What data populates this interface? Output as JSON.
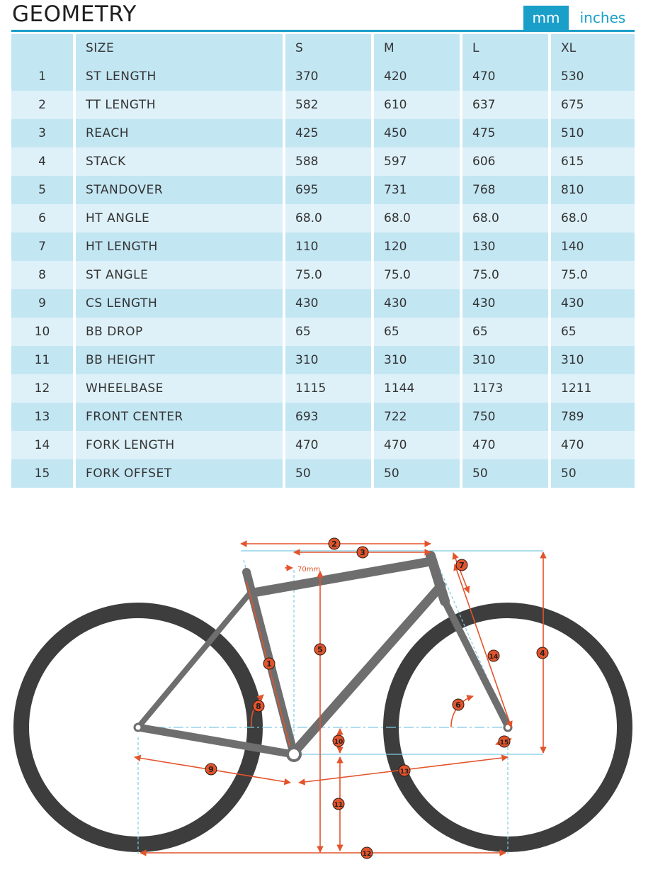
{
  "header": {
    "title": "GEOMETRY",
    "unit_mm": "mm",
    "unit_inches": "inches"
  },
  "table": {
    "columns": [
      "",
      "SIZE",
      "S",
      "M",
      "L",
      "XL"
    ],
    "rows": [
      {
        "num": "1",
        "label": "ST LENGTH",
        "values": [
          "370",
          "420",
          "470",
          "530"
        ]
      },
      {
        "num": "2",
        "label": "TT LENGTH",
        "values": [
          "582",
          "610",
          "637",
          "675"
        ]
      },
      {
        "num": "3",
        "label": "REACH",
        "values": [
          "425",
          "450",
          "475",
          "510"
        ]
      },
      {
        "num": "4",
        "label": "STACK",
        "values": [
          "588",
          "597",
          "606",
          "615"
        ]
      },
      {
        "num": "5",
        "label": "STANDOVER",
        "values": [
          "695",
          "731",
          "768",
          "810"
        ]
      },
      {
        "num": "6",
        "label": "HT ANGLE",
        "values": [
          "68.0",
          "68.0",
          "68.0",
          "68.0"
        ]
      },
      {
        "num": "7",
        "label": "HT LENGTH",
        "values": [
          "110",
          "120",
          "130",
          "140"
        ]
      },
      {
        "num": "8",
        "label": "ST ANGLE",
        "values": [
          "75.0",
          "75.0",
          "75.0",
          "75.0"
        ]
      },
      {
        "num": "9",
        "label": "CS LENGTH",
        "values": [
          "430",
          "430",
          "430",
          "430"
        ]
      },
      {
        "num": "10",
        "label": "BB DROP",
        "values": [
          "65",
          "65",
          "65",
          "65"
        ]
      },
      {
        "num": "11",
        "label": "BB HEIGHT",
        "values": [
          "310",
          "310",
          "310",
          "310"
        ]
      },
      {
        "num": "12",
        "label": "WHEELBASE",
        "values": [
          "1115",
          "1144",
          "1173",
          "1211"
        ]
      },
      {
        "num": "13",
        "label": "FRONT CENTER",
        "values": [
          "693",
          "722",
          "750",
          "789"
        ]
      },
      {
        "num": "14",
        "label": "FORK LENGTH",
        "values": [
          "470",
          "470",
          "470",
          "470"
        ]
      },
      {
        "num": "15",
        "label": "FORK OFFSET",
        "values": [
          "50",
          "50",
          "50",
          "50"
        ]
      }
    ]
  },
  "diagram": {
    "offset_label": "70mm",
    "markers": [
      "1",
      "2",
      "3",
      "4",
      "5",
      "6",
      "7",
      "8",
      "9",
      "10",
      "11",
      "12",
      "13",
      "14",
      "15"
    ]
  },
  "colors": {
    "accent": "#1a9fc9",
    "row_dark": "#c3e6f3",
    "row_light": "#def1f8",
    "measure": "#e2542c",
    "frame": "#6e6e6e",
    "tire": "#3d3d3d"
  }
}
